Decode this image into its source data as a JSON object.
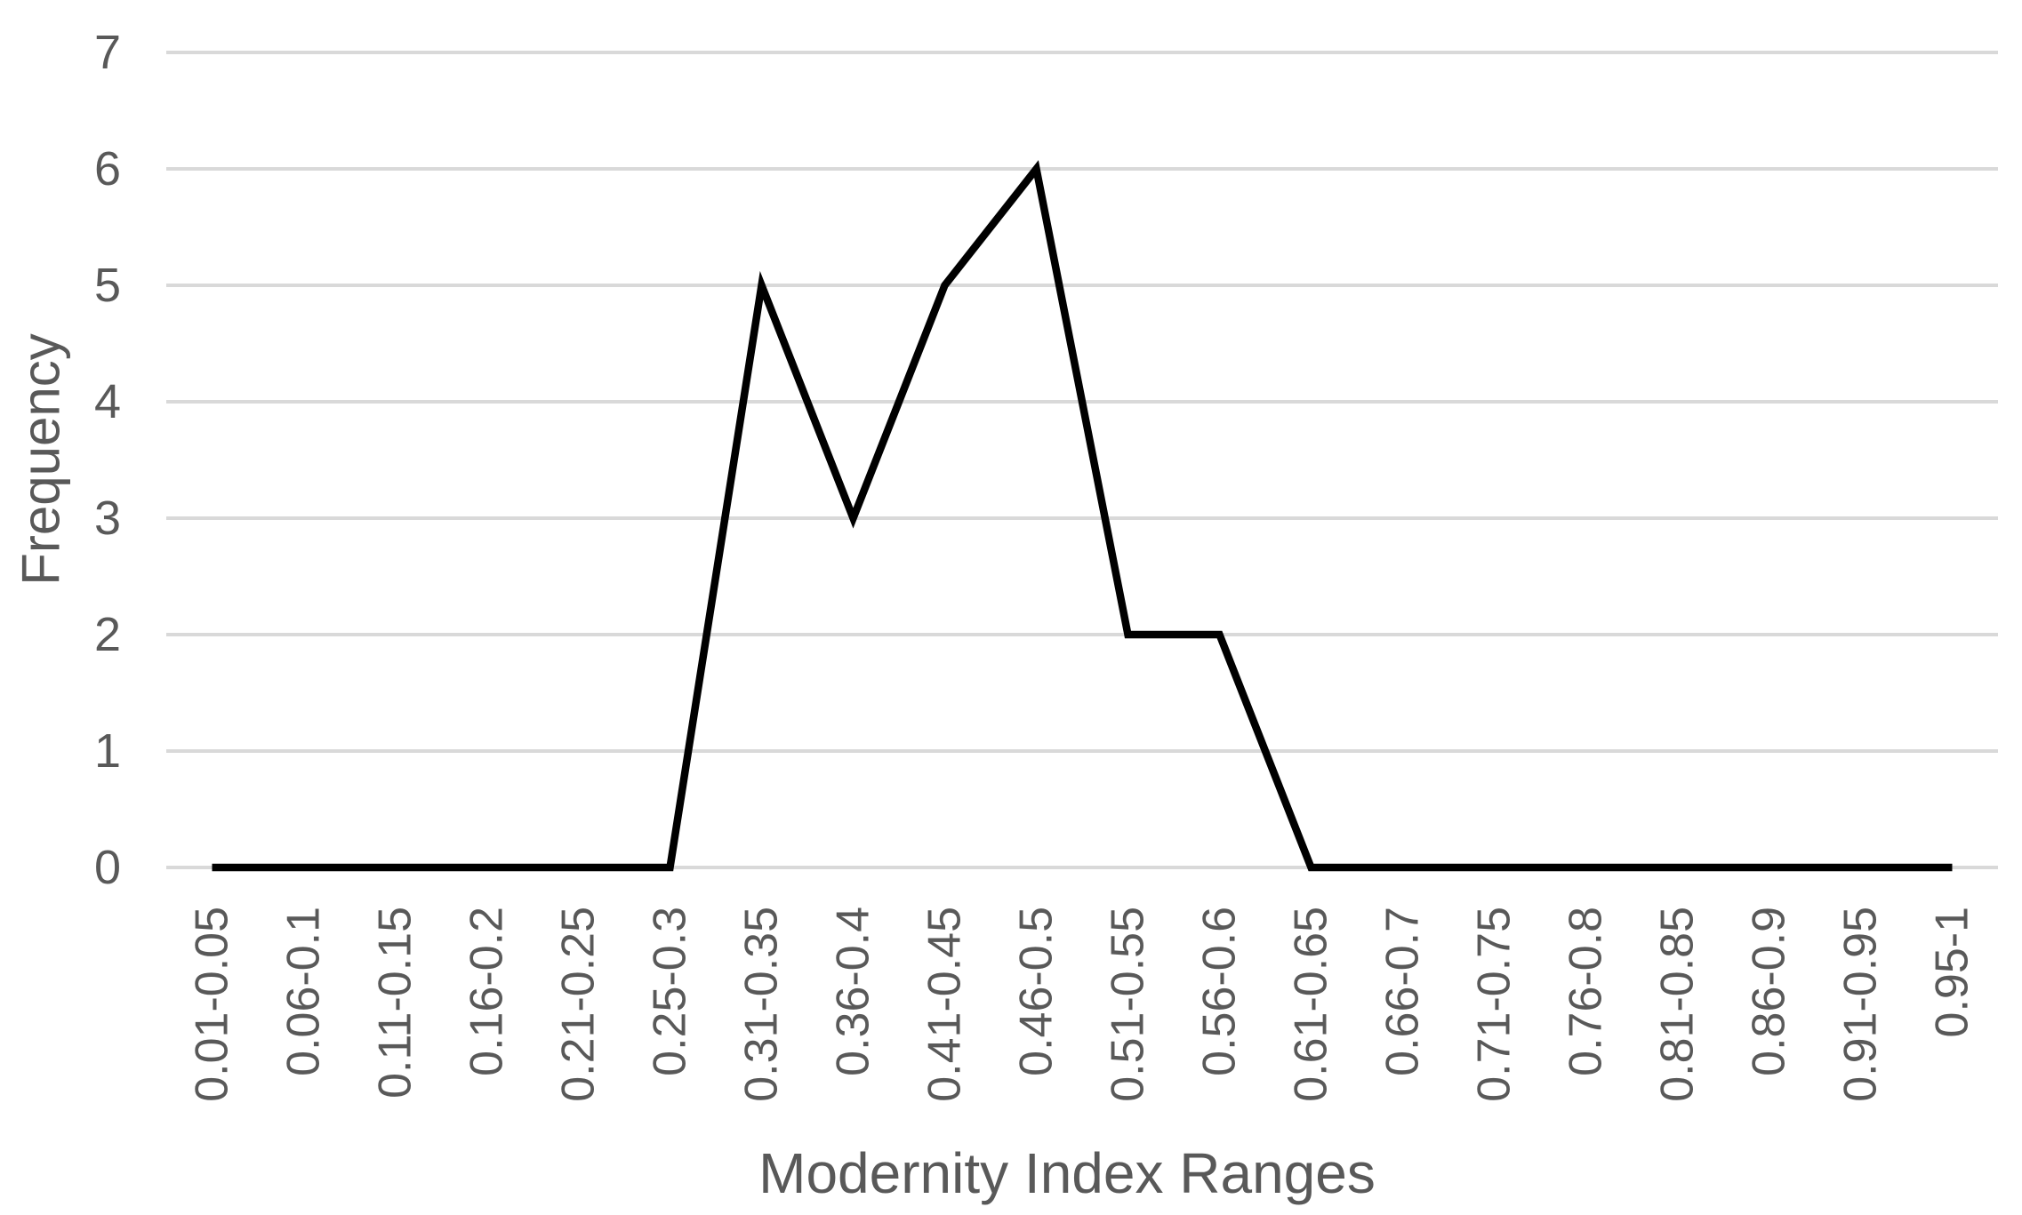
{
  "chart_data": {
    "type": "line",
    "title": "",
    "xlabel": "Modernity Index Ranges",
    "ylabel": "Frequency",
    "categories": [
      "0.01-0.05",
      "0.06-0.1",
      "0.11-0.15",
      "0.16-0.2",
      "0.21-0.25",
      "0.25-0.3",
      "0.31-0.35",
      "0.36-0.4",
      "0.41-0.45",
      "0.46-0.5",
      "0.51-0.55",
      "0.56-0.6",
      "0.61-0.65",
      "0.66-0.7",
      "0.71-0.75",
      "0.76-0.8",
      "0.81-0.85",
      "0.86-0.9",
      "0.91-0.95",
      "0.95-1"
    ],
    "series": [
      {
        "name": "Frequency",
        "values": [
          0,
          0,
          0,
          0,
          0,
          0,
          5,
          3,
          5,
          6,
          2,
          2,
          0,
          0,
          0,
          0,
          0,
          0,
          0,
          0
        ]
      }
    ],
    "ylim": [
      0,
      7
    ],
    "y_tick_labels": [
      "0",
      "1",
      "2",
      "3",
      "4",
      "5",
      "6",
      "7"
    ],
    "grid": "horizontal",
    "legend": "none",
    "colors": {
      "line": "#000000",
      "gridline": "#d9d9d9",
      "text": "#595959",
      "background": "#ffffff"
    }
  }
}
